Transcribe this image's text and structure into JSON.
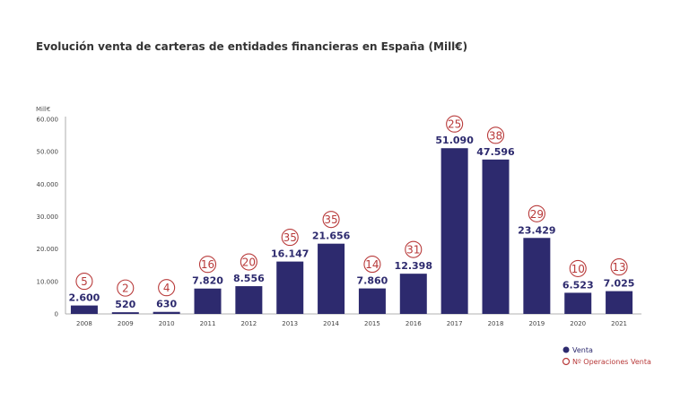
{
  "chart_data": {
    "type": "bar",
    "title": "Evolución venta de carteras de entidades financieras en España (Mill€)",
    "ylabel": "Mill€",
    "ylim": [
      0,
      60000
    ],
    "yticks": [
      "0",
      "10.000",
      "20.000",
      "30.000",
      "40.000",
      "50.000",
      "60.000"
    ],
    "ytick_values": [
      0,
      10000,
      20000,
      30000,
      40000,
      50000,
      60000
    ],
    "grid": false,
    "legend_position": "bottom-right",
    "categories": [
      "2008",
      "2009",
      "2010",
      "2011",
      "2012",
      "2013",
      "2014",
      "2015",
      "2016",
      "2017",
      "2018",
      "2019",
      "2020",
      "2021"
    ],
    "series": [
      {
        "name": "Venta",
        "type": "bar",
        "color": "#2d2a6e",
        "values": [
          2600,
          520,
          630,
          7820,
          8556,
          16147,
          21656,
          7860,
          12398,
          51090,
          47596,
          23429,
          6523,
          7025
        ],
        "labels": [
          "2.600",
          "520",
          "630",
          "7.820",
          "8.556",
          "16.147",
          "21.656",
          "7.860",
          "12.398",
          "51.090",
          "47.596",
          "23.429",
          "6.523",
          "7.025"
        ]
      },
      {
        "name": "Nº Operaciones Venta",
        "type": "circle-annotation",
        "color": "#b83a3a",
        "values": [
          5,
          2,
          4,
          16,
          20,
          35,
          35,
          14,
          31,
          25,
          38,
          29,
          10,
          13
        ]
      }
    ]
  }
}
